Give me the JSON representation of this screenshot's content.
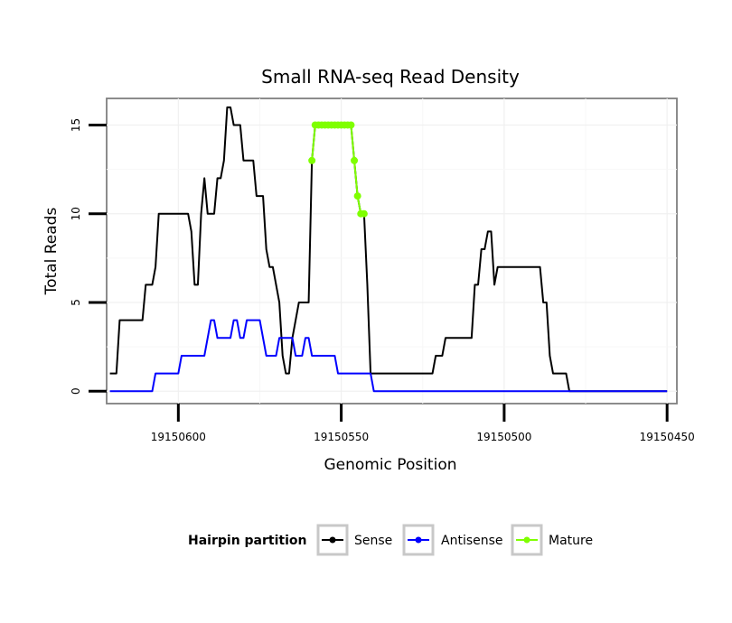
{
  "chart_data": {
    "type": "line",
    "title": "Small RNA-seq Read Density",
    "xlabel": "Genomic Position",
    "ylabel": "Total Reads",
    "xlim": [
      19150622,
      19150447
    ],
    "ylim": [
      -0.7,
      16.5
    ],
    "x_reversed": true,
    "x_ticks": [
      19150600,
      19150550,
      19150500,
      19150450
    ],
    "x_tick_labels": [
      "19150600",
      "19150550",
      "19150500",
      "19150450"
    ],
    "y_ticks": [
      0,
      5,
      10,
      15
    ],
    "y_tick_labels": [
      "0",
      "5",
      "10",
      "15"
    ],
    "grid": true,
    "legend": {
      "title": "Hairpin partition",
      "position": "bottom",
      "entries": [
        "Sense",
        "Antisense",
        "Mature"
      ]
    },
    "series": [
      {
        "name": "Sense",
        "color": "#000000",
        "points": [
          [
            19150621,
            1
          ],
          [
            19150619,
            1
          ],
          [
            19150618,
            4
          ],
          [
            19150617,
            4
          ],
          [
            19150614,
            4
          ],
          [
            19150611,
            4
          ],
          [
            19150610,
            6
          ],
          [
            19150608,
            6
          ],
          [
            19150607,
            7
          ],
          [
            19150606,
            10
          ],
          [
            19150603,
            10
          ],
          [
            19150600,
            10
          ],
          [
            19150597,
            10
          ],
          [
            19150596,
            9
          ],
          [
            19150595,
            6
          ],
          [
            19150594,
            6
          ],
          [
            19150593,
            10
          ],
          [
            19150592,
            12
          ],
          [
            19150591,
            10
          ],
          [
            19150589,
            10
          ],
          [
            19150588,
            12
          ],
          [
            19150587,
            12
          ],
          [
            19150586,
            13
          ],
          [
            19150585,
            16
          ],
          [
            19150584,
            16
          ],
          [
            19150583,
            15
          ],
          [
            19150581,
            15
          ],
          [
            19150580,
            13
          ],
          [
            19150577,
            13
          ],
          [
            19150576,
            11
          ],
          [
            19150574,
            11
          ],
          [
            19150573,
            8
          ],
          [
            19150572,
            7
          ],
          [
            19150571,
            7
          ],
          [
            19150570,
            6
          ],
          [
            19150569,
            5
          ],
          [
            19150568,
            2
          ],
          [
            19150567,
            1
          ],
          [
            19150566,
            1
          ],
          [
            19150565,
            3
          ],
          [
            19150564,
            4
          ],
          [
            19150563,
            5
          ],
          [
            19150562,
            5
          ],
          [
            19150560,
            5
          ],
          [
            19150559,
            13
          ],
          [
            19150558,
            15
          ],
          [
            19150555,
            15
          ],
          [
            19150550,
            15
          ],
          [
            19150547,
            15
          ],
          [
            19150546,
            13
          ],
          [
            19150545,
            11
          ],
          [
            19150544,
            10
          ],
          [
            19150543,
            10
          ],
          [
            19150542,
            6
          ],
          [
            19150541,
            1
          ],
          [
            19150538,
            1
          ],
          [
            19150535,
            1
          ],
          [
            19150530,
            1
          ],
          [
            19150525,
            1
          ],
          [
            19150522,
            1
          ],
          [
            19150521,
            2
          ],
          [
            19150519,
            2
          ],
          [
            19150518,
            3
          ],
          [
            19150516,
            3
          ],
          [
            19150512,
            3
          ],
          [
            19150510,
            3
          ],
          [
            19150509,
            6
          ],
          [
            19150508,
            6
          ],
          [
            19150507,
            8
          ],
          [
            19150506,
            8
          ],
          [
            19150505,
            9
          ],
          [
            19150504,
            9
          ],
          [
            19150503,
            6
          ],
          [
            19150502,
            7
          ],
          [
            19150497,
            7
          ],
          [
            19150492,
            7
          ],
          [
            19150489,
            7
          ],
          [
            19150488,
            5
          ],
          [
            19150487,
            5
          ],
          [
            19150486,
            2
          ],
          [
            19150485,
            1
          ],
          [
            19150484,
            1
          ],
          [
            19150481,
            1
          ],
          [
            19150480,
            0
          ],
          [
            19150475,
            0
          ],
          [
            19150470,
            0
          ],
          [
            19150465,
            0
          ],
          [
            19150460,
            0
          ],
          [
            19150455,
            0
          ],
          [
            19150450,
            0
          ]
        ]
      },
      {
        "name": "Antisense",
        "color": "#0000ff",
        "points": [
          [
            19150621,
            0
          ],
          [
            19150618,
            0
          ],
          [
            19150612,
            0
          ],
          [
            19150608,
            0
          ],
          [
            19150607,
            1
          ],
          [
            19150604,
            1
          ],
          [
            19150600,
            1
          ],
          [
            19150599,
            2
          ],
          [
            19150596,
            2
          ],
          [
            19150592,
            2
          ],
          [
            19150591,
            3
          ],
          [
            19150590,
            4
          ],
          [
            19150589,
            4
          ],
          [
            19150588,
            3
          ],
          [
            19150586,
            3
          ],
          [
            19150584,
            3
          ],
          [
            19150583,
            4
          ],
          [
            19150582,
            4
          ],
          [
            19150581,
            3
          ],
          [
            19150580,
            3
          ],
          [
            19150579,
            4
          ],
          [
            19150578,
            4
          ],
          [
            19150577,
            4
          ],
          [
            19150575,
            4
          ],
          [
            19150574,
            3
          ],
          [
            19150573,
            2
          ],
          [
            19150571,
            2
          ],
          [
            19150570,
            2
          ],
          [
            19150569,
            3
          ],
          [
            19150566,
            3
          ],
          [
            19150565,
            3
          ],
          [
            19150564,
            2
          ],
          [
            19150563,
            2
          ],
          [
            19150562,
            2
          ],
          [
            19150561,
            3
          ],
          [
            19150560,
            3
          ],
          [
            19150559,
            2
          ],
          [
            19150557,
            2
          ],
          [
            19150554,
            2
          ],
          [
            19150552,
            2
          ],
          [
            19150551,
            1
          ],
          [
            19150548,
            1
          ],
          [
            19150545,
            1
          ],
          [
            19150541,
            1
          ],
          [
            19150540,
            0
          ],
          [
            19150535,
            0
          ],
          [
            19150520,
            0
          ],
          [
            19150500,
            0
          ],
          [
            19150490,
            0
          ],
          [
            19150480,
            0
          ],
          [
            19150470,
            0
          ],
          [
            19150460,
            0
          ],
          [
            19150450,
            0
          ]
        ]
      },
      {
        "name": "Mature",
        "color": "#7fff00",
        "points": [
          [
            19150559,
            13
          ],
          [
            19150558,
            15
          ],
          [
            19150557,
            15
          ],
          [
            19150556,
            15
          ],
          [
            19150555,
            15
          ],
          [
            19150554,
            15
          ],
          [
            19150553,
            15
          ],
          [
            19150552,
            15
          ],
          [
            19150551,
            15
          ],
          [
            19150550,
            15
          ],
          [
            19150549,
            15
          ],
          [
            19150548,
            15
          ],
          [
            19150547,
            15
          ],
          [
            19150546,
            13
          ],
          [
            19150545,
            11
          ],
          [
            19150544,
            10
          ],
          [
            19150543,
            10
          ]
        ]
      }
    ]
  }
}
